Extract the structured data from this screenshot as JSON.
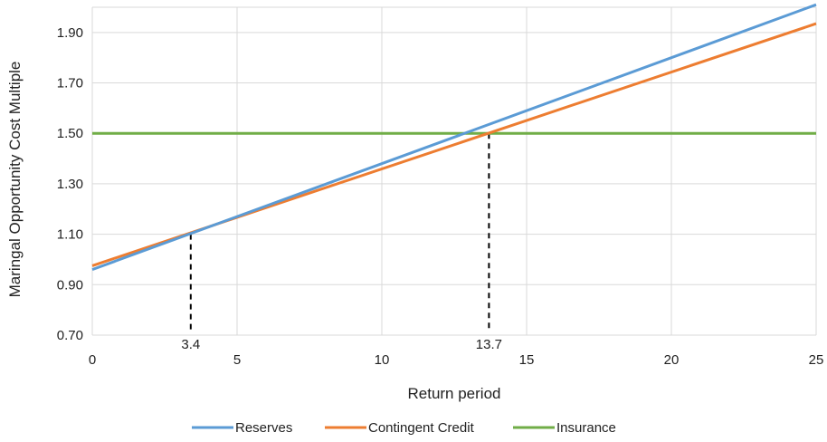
{
  "chart_data": {
    "type": "line",
    "title": "",
    "xlabel": "Return period",
    "ylabel": "Maringal Opportunity Cost Multiple",
    "xlim": [
      0,
      25
    ],
    "ylim": [
      0.7,
      2.0
    ],
    "x_ticks": [
      "0",
      "5",
      "10",
      "15",
      "20",
      "25"
    ],
    "y_ticks": [
      "0.70",
      "0.90",
      "1.10",
      "1.30",
      "1.50",
      "1.70",
      "1.90"
    ],
    "grid": true,
    "legend_position": "bottom",
    "series": [
      {
        "name": "Reserves",
        "color": "#5B9BD5",
        "x": [
          0,
          25
        ],
        "y": [
          0.96,
          2.01
        ]
      },
      {
        "name": "Contingent Credit",
        "color": "#ED7D31",
        "x": [
          0,
          25
        ],
        "y": [
          0.975,
          1.935
        ]
      },
      {
        "name": "Insurance",
        "color": "#70AD47",
        "x": [
          0,
          25
        ],
        "y": [
          1.5,
          1.5
        ]
      }
    ],
    "annotations": [
      {
        "label": "3.4",
        "x": 3.4,
        "y": 1.1
      },
      {
        "label": "13.7",
        "x": 13.7,
        "y": 1.5
      }
    ]
  }
}
